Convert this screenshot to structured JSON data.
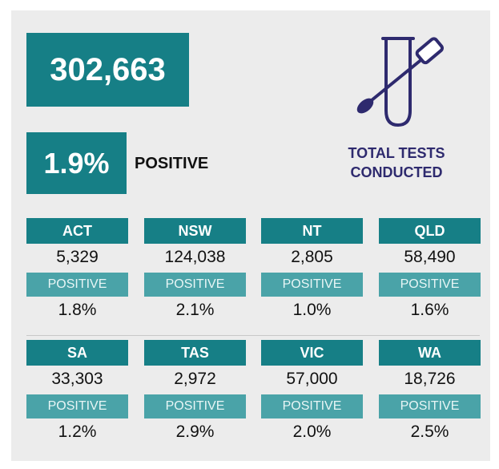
{
  "total": {
    "value": "302,663"
  },
  "positive": {
    "value": "1.9%",
    "label": "POSITIVE"
  },
  "tests": {
    "line1": "TOTAL TESTS",
    "line2": "CONDUCTED",
    "icon": "test-tube-swab-icon",
    "icon_color": "#2e2a6e"
  },
  "colors": {
    "primary": "#167f86",
    "secondary": "#4aa3a8",
    "panel": "#ececec"
  },
  "states": [
    {
      "name": "ACT",
      "count": "5,329",
      "pos_label": "POSITIVE",
      "rate": "1.8%"
    },
    {
      "name": "NSW",
      "count": "124,038",
      "pos_label": "POSITIVE",
      "rate": "2.1%"
    },
    {
      "name": "NT",
      "count": "2,805",
      "pos_label": "POSITIVE",
      "rate": "1.0%"
    },
    {
      "name": "QLD",
      "count": "58,490",
      "pos_label": "POSITIVE",
      "rate": "1.6%"
    },
    {
      "name": "SA",
      "count": "33,303",
      "pos_label": "POSITIVE",
      "rate": "1.2%"
    },
    {
      "name": "TAS",
      "count": "2,972",
      "pos_label": "POSITIVE",
      "rate": "2.9%"
    },
    {
      "name": "VIC",
      "count": "57,000",
      "pos_label": "POSITIVE",
      "rate": "2.0%"
    },
    {
      "name": "WA",
      "count": "18,726",
      "pos_label": "POSITIVE",
      "rate": "2.5%"
    }
  ]
}
